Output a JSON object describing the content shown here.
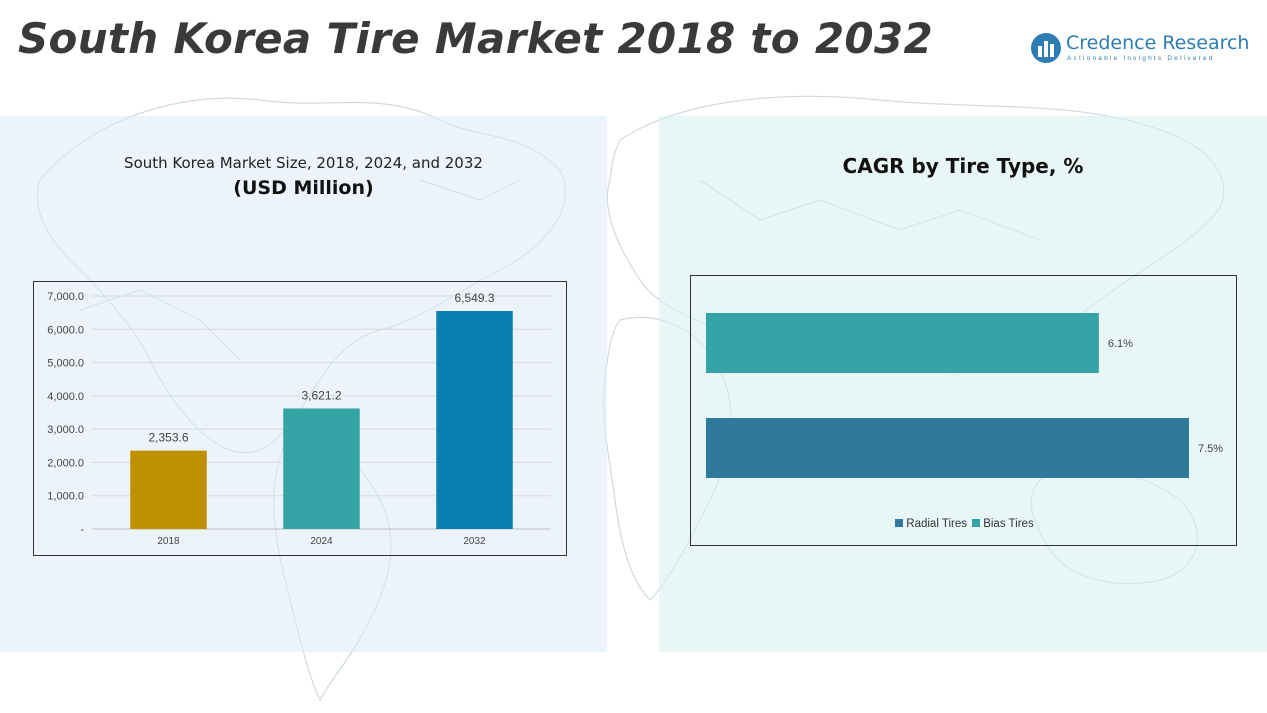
{
  "page": {
    "title": "South Korea Tire Market 2018 to 2032"
  },
  "brand": {
    "name": "Credence Research",
    "tagline": "Actionable Insights Delivered",
    "color": "#2d7db3"
  },
  "left_panel": {
    "title": "South Korea Market Size, 2018, 2024, and 2032",
    "subtitle": "(USD Million)"
  },
  "right_panel": {
    "title": "CAGR by Tire Type, %"
  },
  "chart_data": [
    {
      "type": "bar",
      "categories": [
        "2018",
        "2024",
        "2032"
      ],
      "values": [
        2353.6,
        3621.2,
        6549.3
      ],
      "data_labels": [
        "2,353.6",
        "3,621.2",
        "6,549.3"
      ],
      "colors": [
        "#bf9000",
        "#35a4a6",
        "#0b7fb2"
      ],
      "ylim": [
        0,
        7000
      ],
      "yticks": [
        0,
        1000,
        2000,
        3000,
        4000,
        5000,
        6000,
        7000
      ],
      "ytick_labels": [
        "-",
        "1,000.0",
        "2,000.0",
        "3,000.0",
        "4,000.0",
        "5,000.0",
        "6,000.0",
        "7,000.0"
      ],
      "grid": true
    },
    {
      "type": "bar",
      "orientation": "horizontal",
      "series": [
        {
          "name": "Bias Tires",
          "value": 6.1,
          "label": "6.1%",
          "color": "#35a4a6"
        },
        {
          "name": "Radial Tires",
          "value": 7.5,
          "label": "7.5%",
          "color": "#2f7a9c"
        }
      ],
      "legend": {
        "position": "bottom",
        "items": [
          {
            "name": "Radial Tires",
            "color": "#2f7a9c"
          },
          {
            "name": "Bias Tires",
            "color": "#35a4a6"
          }
        ]
      }
    }
  ]
}
